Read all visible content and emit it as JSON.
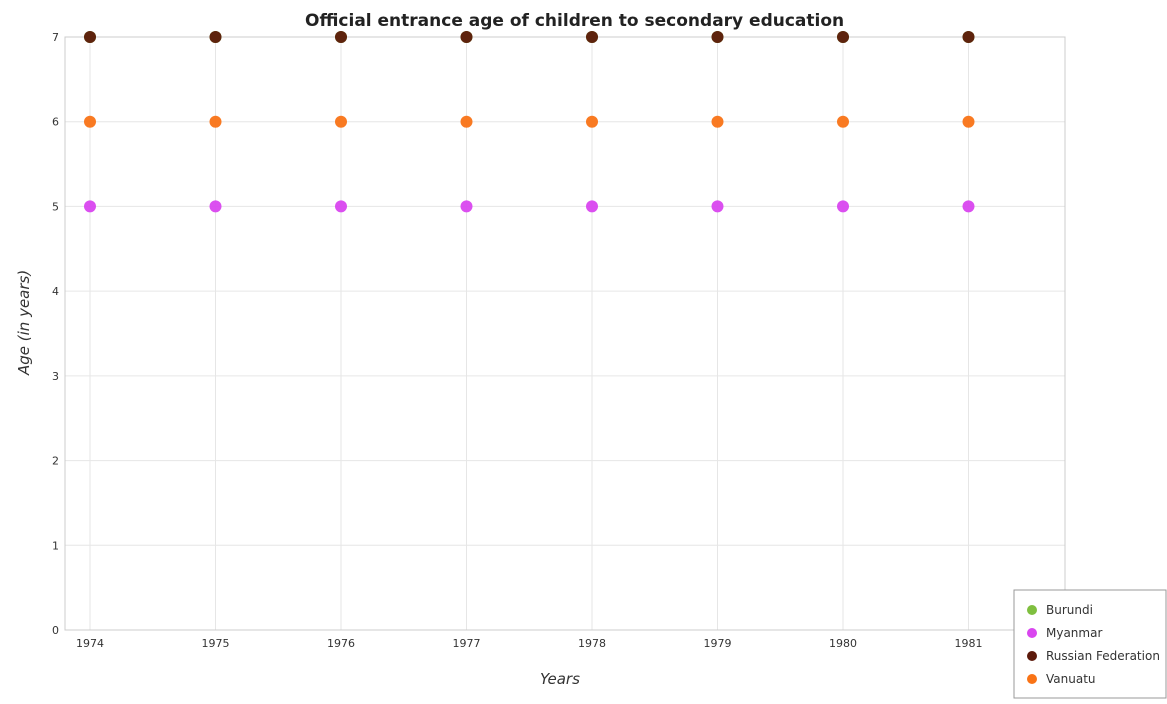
{
  "chart_data": {
    "type": "scatter",
    "title": "Official entrance age of children to secondary education",
    "xlabel": "Years",
    "ylabel": "Age (in years)",
    "categories": [
      "1974",
      "1975",
      "1976",
      "1977",
      "1978",
      "1979",
      "1980",
      "1981"
    ],
    "ylim": [
      0,
      7
    ],
    "yticks": [
      "0",
      "1",
      "2",
      "3",
      "4",
      "5",
      "6",
      "7"
    ],
    "grid": true,
    "legend_position": "bottom-right",
    "series": [
      {
        "name": "Burundi",
        "color": "#7fbf3f",
        "values": [
          7,
          7,
          7,
          7,
          7,
          7,
          7,
          7
        ]
      },
      {
        "name": "Myanmar",
        "color": "#d946ef",
        "values": [
          5,
          5,
          5,
          5,
          5,
          5,
          5,
          5
        ]
      },
      {
        "name": "Russian Federation",
        "color": "#5c1a0b",
        "values": [
          7,
          7,
          7,
          7,
          7,
          7,
          7,
          7
        ]
      },
      {
        "name": "Vanuatu",
        "color": "#f97316",
        "values": [
          6,
          6,
          6,
          6,
          6,
          6,
          6,
          6
        ]
      }
    ]
  }
}
